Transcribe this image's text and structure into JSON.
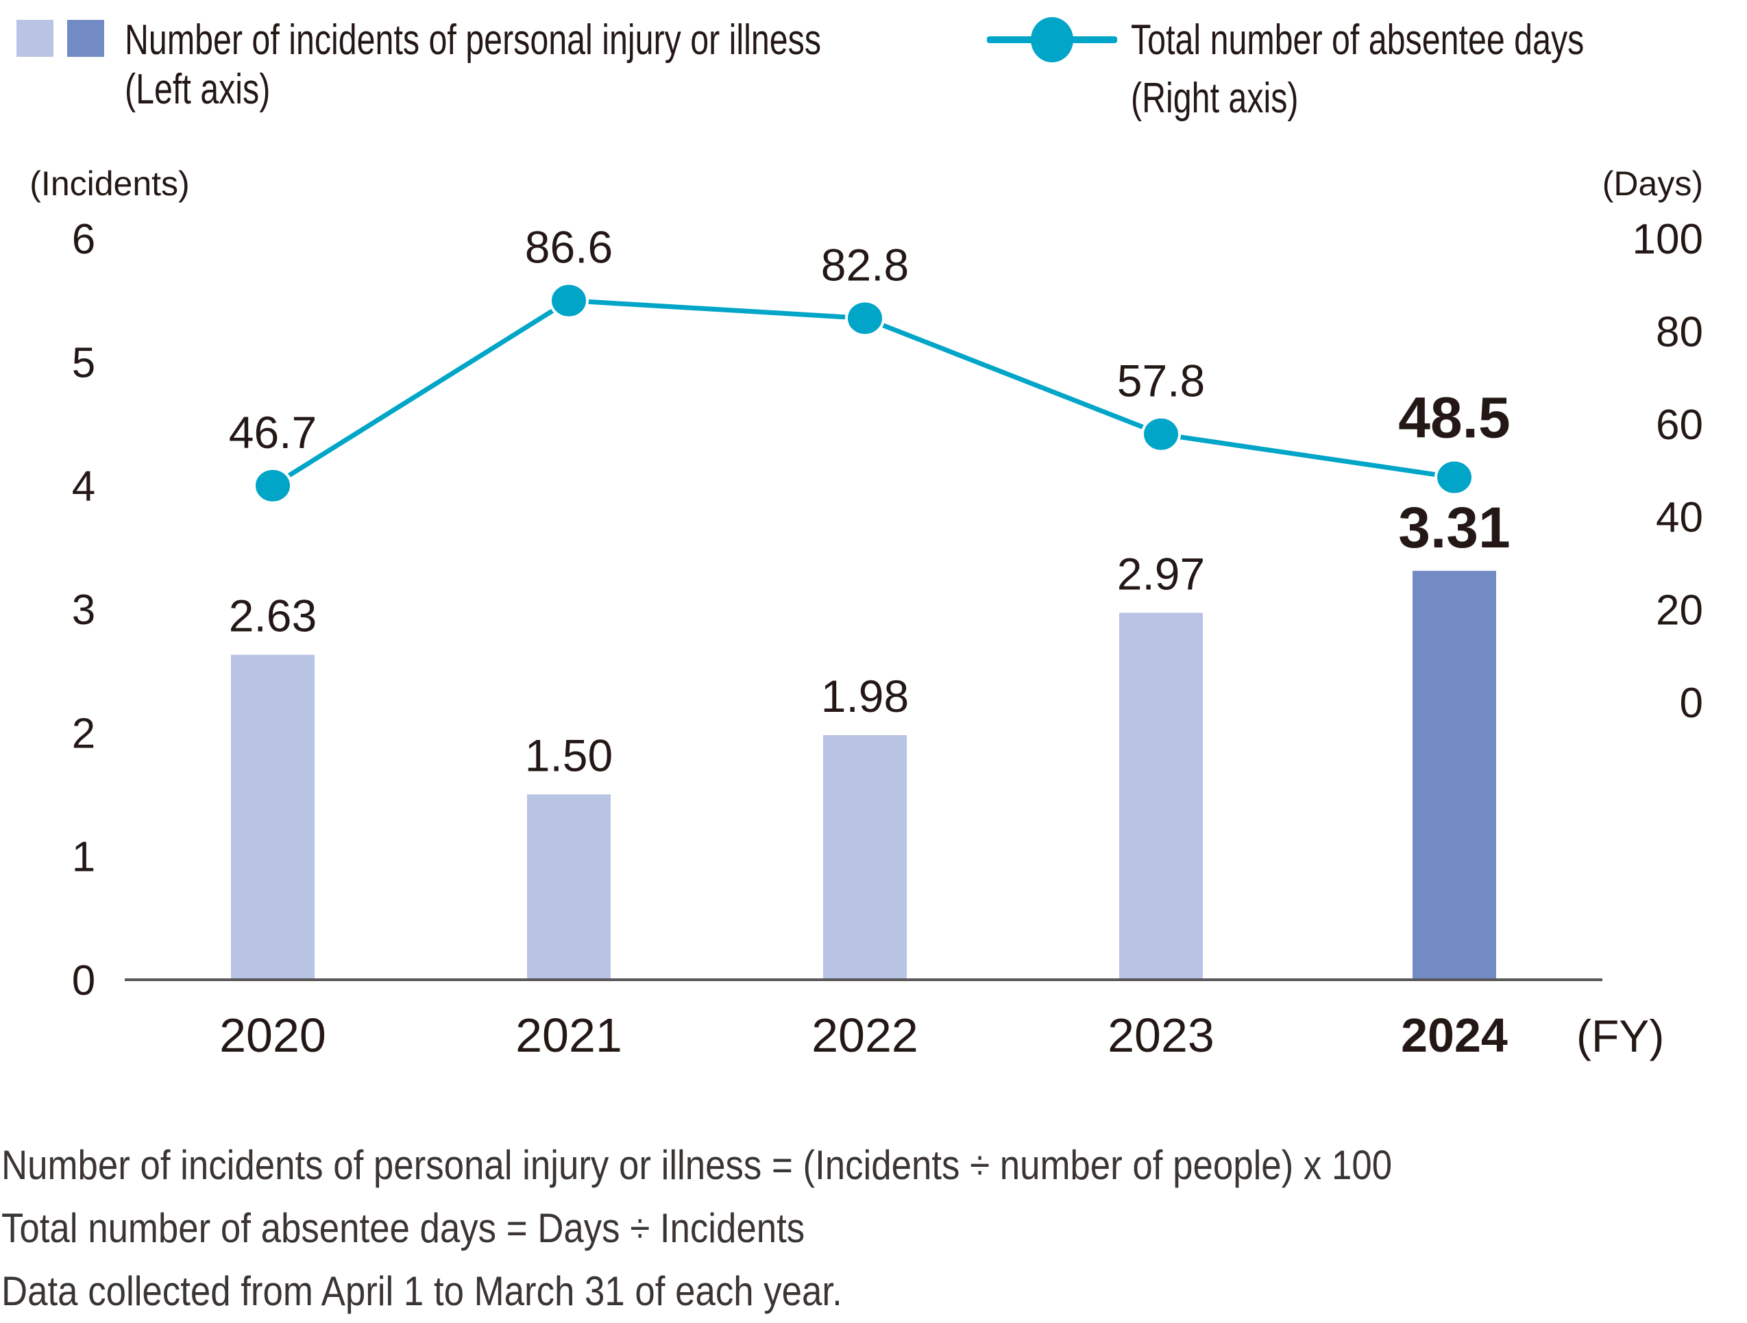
{
  "legend": {
    "bars_label_line1": "Number of incidents of personal injury or illness",
    "bars_label_line2": "(Left axis)",
    "line_label_line1": "Total number of absentee days",
    "line_label_line2": "(Right axis)"
  },
  "notes": [
    "Number of incidents of personal injury or illness = (Incidents ÷ number of people) x 100",
    "Total number of absentee days = Days ÷ Incidents",
    "Data collected from April 1 to March 31 of each year."
  ],
  "chart_data": {
    "type": "bar",
    "title": "",
    "categories": [
      "2020",
      "2021",
      "2022",
      "2023",
      "2024"
    ],
    "highlight_category": "2024",
    "xlabel": "(FY)",
    "series": [
      {
        "name": "Number of incidents of personal injury or illness (Left axis)",
        "type": "bar",
        "axis": "left",
        "values": [
          2.63,
          1.5,
          1.98,
          2.97,
          3.31
        ],
        "labels": [
          "2.63",
          "1.50",
          "1.98",
          "2.97",
          "3.31"
        ],
        "color": "#b9c3e3",
        "highlight_color": "#728bc5"
      },
      {
        "name": "Total number of absentee days (Right axis)",
        "type": "line",
        "axis": "right",
        "values": [
          46.7,
          86.6,
          82.8,
          57.8,
          48.5
        ],
        "labels": [
          "46.7",
          "86.6",
          "82.8",
          "57.8",
          "48.5"
        ],
        "color": "#00a5c8"
      }
    ],
    "left_axis": {
      "label": "(Incidents)",
      "range": [
        0,
        6
      ],
      "ticks": [
        "0",
        "1",
        "2",
        "3",
        "4",
        "5",
        "6"
      ]
    },
    "right_axis": {
      "label": "(Days)",
      "range": [
        0,
        100
      ],
      "ticks": [
        "0",
        "20",
        "40",
        "60",
        "80",
        "100"
      ]
    },
    "grid": false,
    "legend_position": "top"
  }
}
